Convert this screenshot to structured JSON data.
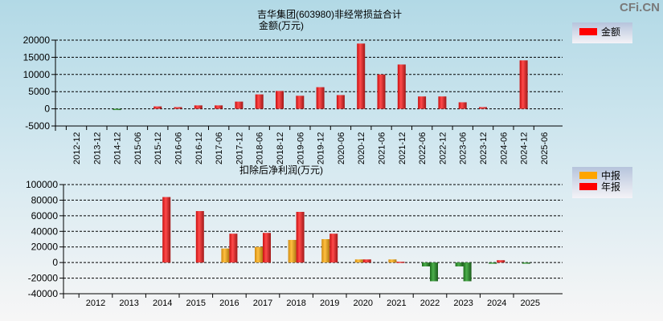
{
  "watermark": "CFi.CN",
  "chart_data": [
    {
      "type": "bar",
      "title": "吉华集团(603980)非经常损益合计",
      "subtitle": "金额(万元)",
      "legend": [
        {
          "name": "金额",
          "color": "#ff0000"
        }
      ],
      "legend_placement": "top-right",
      "ylim": [
        -5000,
        20000
      ],
      "yticks": [
        "20000",
        "15000",
        "10000",
        "5000",
        "0",
        "-5000"
      ],
      "categories": [
        "2012-12",
        "2013-12",
        "2014-12",
        "2015-06",
        "2015-12",
        "2016-06",
        "2016-12",
        "2017-06",
        "2017-12",
        "2018-06",
        "2018-12",
        "2019-06",
        "2019-12",
        "2020-06",
        "2020-12",
        "2021-06",
        "2021-12",
        "2022-06",
        "2022-12",
        "2023-06",
        "2023-12",
        "2024-06",
        "2024-12",
        "2025-06"
      ],
      "values": [
        0,
        0,
        -300,
        0,
        700,
        500,
        1000,
        1000,
        2100,
        4200,
        5200,
        3800,
        6300,
        4000,
        19000,
        10000,
        12900,
        3600,
        3600,
        1900,
        500,
        0,
        14100,
        0
      ]
    },
    {
      "type": "bar",
      "title": "扣除后净利润(万元)",
      "legend": [
        {
          "name": "中报",
          "color": "#ffa500"
        },
        {
          "name": "年报",
          "color": "#ff0000"
        }
      ],
      "legend_placement": "top-right",
      "ylim": [
        -40000,
        100000
      ],
      "yticks": [
        "100000",
        "80000",
        "60000",
        "40000",
        "20000",
        "0",
        "-20000",
        "-40000"
      ],
      "categories": [
        "2012",
        "2013",
        "2014",
        "2015",
        "2016",
        "2017",
        "2018",
        "2019",
        "2020",
        "2021",
        "2022",
        "2023",
        "2024",
        "2025"
      ],
      "series": [
        {
          "name": "中报",
          "values": [
            0,
            0,
            0,
            0,
            18000,
            20000,
            29000,
            30000,
            4000,
            4000,
            -5000,
            -5000,
            -500,
            -1000
          ]
        },
        {
          "name": "年报",
          "values": [
            0,
            0,
            84000,
            66000,
            37000,
            38000,
            65000,
            37000,
            4000,
            1000,
            -24000,
            -24000,
            3000,
            null
          ]
        }
      ]
    }
  ]
}
